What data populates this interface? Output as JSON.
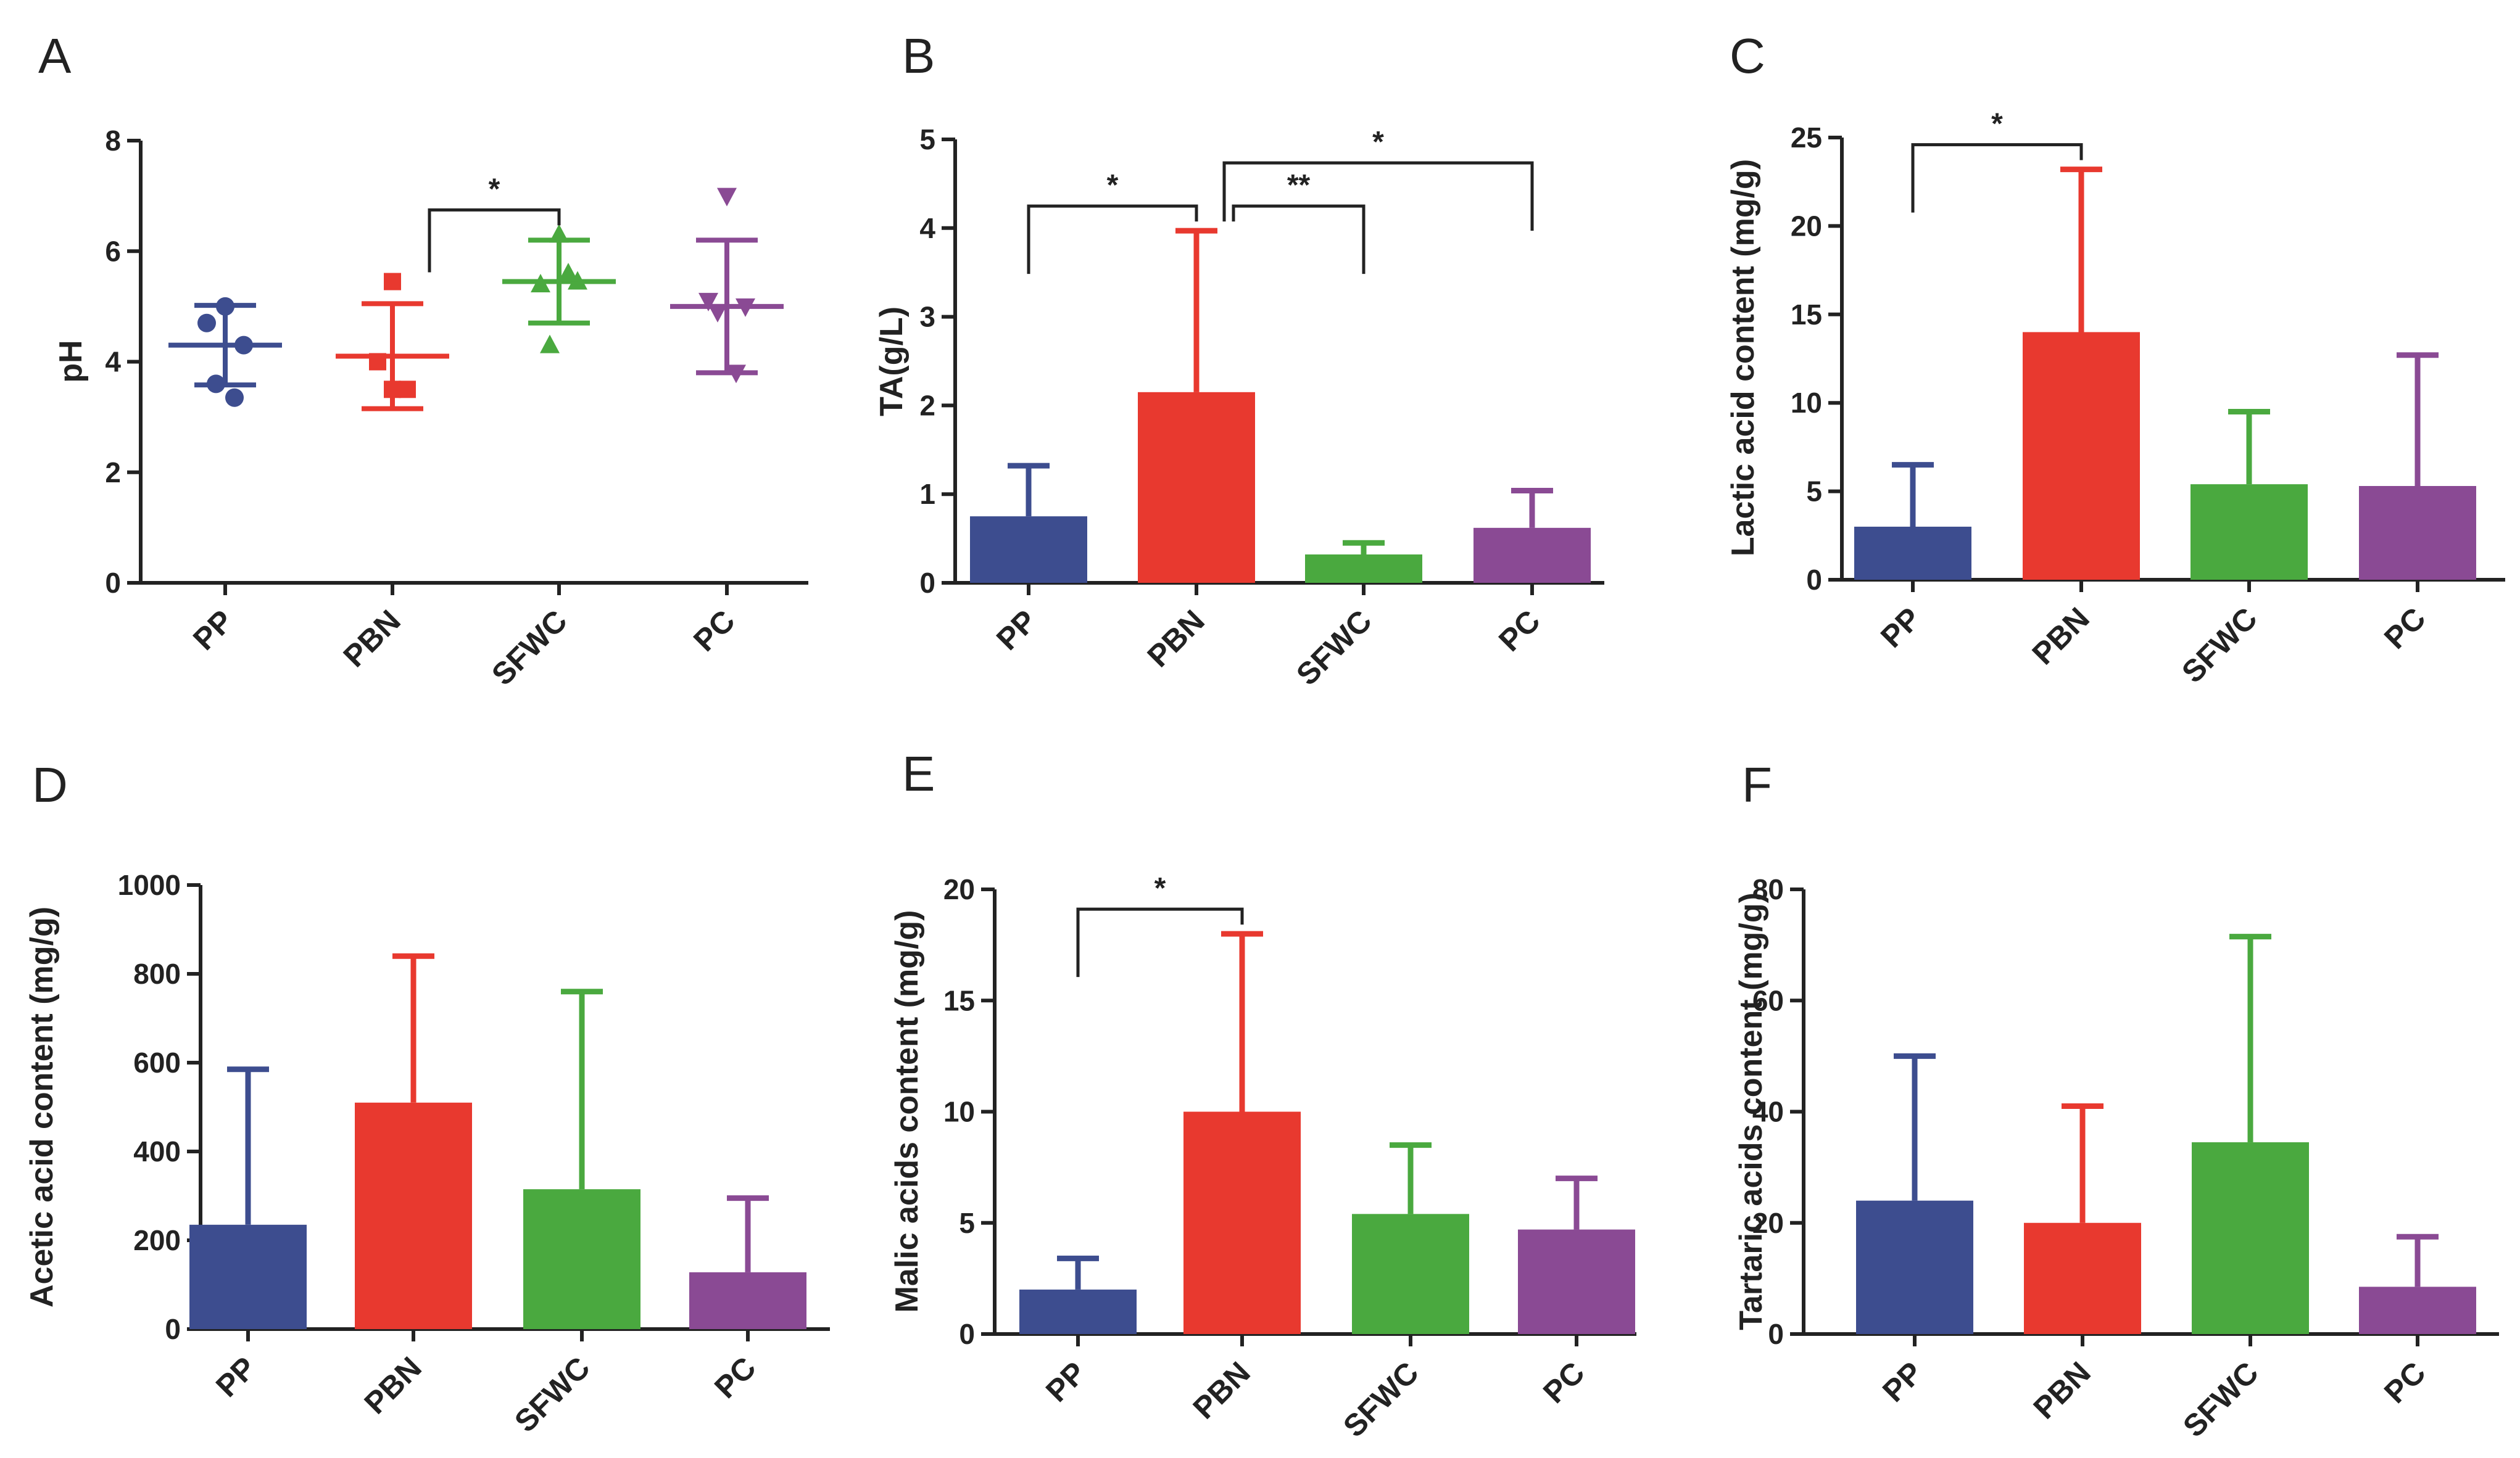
{
  "colors": {
    "PP": "#3d4d8f",
    "PBN": "#e8392f",
    "SFWC": "#4aa93f",
    "PC": "#8a4a94",
    "axis": "#222222"
  },
  "chart_data": [
    {
      "panel": "A",
      "type": "scatter",
      "ylabel": "pH",
      "ylim": [
        0,
        8
      ],
      "yticks": [
        0,
        2,
        4,
        6,
        8
      ],
      "categories": [
        "PP",
        "PBN",
        "SFWC",
        "PC"
      ],
      "markers": [
        "circle",
        "square",
        "triangle-up",
        "triangle-down"
      ],
      "points": [
        [
          5.0,
          4.7,
          4.3,
          3.6,
          3.35
        ],
        [
          5.45,
          4.0,
          3.5,
          3.5
        ],
        [
          6.3,
          5.4,
          5.45,
          4.3,
          5.6
        ],
        [
          7.0,
          5.1,
          5.0,
          4.9,
          3.8
        ]
      ],
      "means": [
        4.3,
        4.1,
        5.45,
        5.0
      ],
      "sd": [
        0.72,
        0.95,
        0.75,
        1.2
      ],
      "significance": [
        {
          "from": 1,
          "to": 2,
          "label": "*"
        }
      ]
    },
    {
      "panel": "B",
      "type": "bar",
      "ylabel": "TA(g/L)",
      "ylim": [
        0,
        5
      ],
      "yticks": [
        0,
        1,
        2,
        3,
        4,
        5
      ],
      "categories": [
        "PP",
        "PBN",
        "SFWC",
        "PC"
      ],
      "values": [
        0.75,
        2.15,
        0.32,
        0.62
      ],
      "errors": [
        0.57,
        1.82,
        0.13,
        0.42
      ],
      "significance": [
        {
          "from": 0,
          "to": 1,
          "label": "*"
        },
        {
          "from": 1,
          "to": 2,
          "label": "**"
        },
        {
          "from": 1,
          "to": 3,
          "label": "*"
        }
      ]
    },
    {
      "panel": "C",
      "type": "bar",
      "ylabel": "Lactic acid content (mg/g)",
      "ylim": [
        0,
        25
      ],
      "yticks": [
        0,
        5,
        10,
        15,
        20,
        25
      ],
      "categories": [
        "PP",
        "PBN",
        "SFWC",
        "PC"
      ],
      "values": [
        3.0,
        14.0,
        5.4,
        5.3
      ],
      "errors": [
        3.5,
        9.2,
        4.1,
        7.4
      ],
      "significance": [
        {
          "from": 0,
          "to": 1,
          "label": "*"
        }
      ]
    },
    {
      "panel": "D",
      "type": "bar",
      "ylabel": "Acetic acid content (mg/g)",
      "ylim": [
        0,
        1000
      ],
      "yticks": [
        0,
        200,
        400,
        600,
        800,
        1000
      ],
      "categories": [
        "PP",
        "PBN",
        "SFWC",
        "PC"
      ],
      "values": [
        235,
        510,
        315,
        128
      ],
      "errors": [
        350,
        330,
        445,
        167
      ],
      "significance": []
    },
    {
      "panel": "E",
      "type": "bar",
      "ylabel": "Malic acids content (mg/g)",
      "ylim": [
        0,
        20
      ],
      "yticks": [
        0,
        5,
        10,
        15,
        20
      ],
      "categories": [
        "PP",
        "PBN",
        "SFWC",
        "PC"
      ],
      "values": [
        2.0,
        10.0,
        5.4,
        4.7
      ],
      "errors": [
        1.4,
        8.0,
        3.1,
        2.3
      ],
      "significance": [
        {
          "from": 0,
          "to": 1,
          "label": "*"
        }
      ]
    },
    {
      "panel": "F",
      "type": "bar",
      "ylabel": "Tartaric acids content (mg/g)",
      "ylim": [
        0,
        80
      ],
      "yticks": [
        0,
        20,
        40,
        60,
        80
      ],
      "categories": [
        "PP",
        "PBN",
        "SFWC",
        "PC"
      ],
      "values": [
        24,
        20,
        34.5,
        8.5
      ],
      "errors": [
        26,
        21,
        37,
        9
      ],
      "significance": []
    }
  ]
}
